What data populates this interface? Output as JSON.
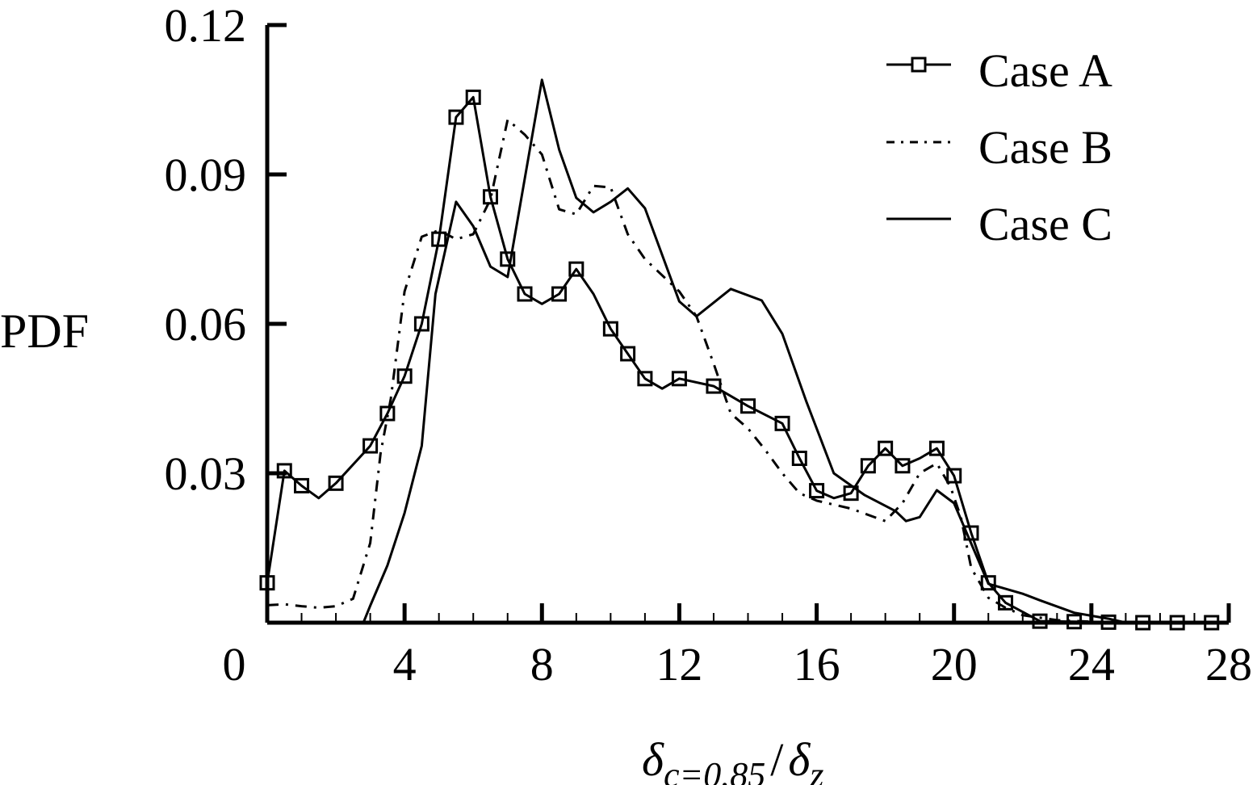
{
  "chart_data": {
    "type": "line",
    "title": "",
    "xlabel": "δ_{c=0.85}/δ_z",
    "ylabel": "PDF",
    "xlim": [
      0,
      28
    ],
    "ylim": [
      0,
      0.12
    ],
    "xticks": [
      0,
      4,
      8,
      12,
      16,
      20,
      24,
      28
    ],
    "xtick_labels": [
      "0",
      "4",
      "8",
      "12",
      "16",
      "20",
      "24",
      "28"
    ],
    "x_minor_step": 1,
    "yticks": [
      0.03,
      0.06,
      0.09,
      0.12
    ],
    "ytick_labels": [
      "0.03",
      "0.06",
      "0.09",
      "0.12"
    ],
    "grid": false,
    "legend_position": "upper right",
    "series": [
      {
        "name": "Case A",
        "style": "solid-square-markers",
        "x": [
          0,
          0.5,
          1.0,
          1.5,
          2.0,
          3.0,
          3.5,
          4.0,
          4.5,
          5.0,
          5.5,
          6.0,
          6.5,
          7.0,
          7.5,
          8.0,
          8.5,
          9.0,
          9.5,
          10.0,
          10.5,
          11.0,
          11.5,
          12.0,
          13.0,
          14.0,
          15.0,
          15.5,
          16.0,
          16.5,
          17.0,
          17.5,
          18.0,
          18.5,
          19.0,
          19.5,
          20.0,
          20.5,
          21.0,
          21.5,
          22.5,
          23.5,
          24.5,
          25.5,
          26.5,
          27.5
        ],
        "y": [
          0.008,
          0.0305,
          0.0275,
          0.025,
          0.028,
          0.0355,
          0.042,
          0.0495,
          0.06,
          0.077,
          0.1015,
          0.1055,
          0.0855,
          0.073,
          0.066,
          0.064,
          0.066,
          0.071,
          0.066,
          0.059,
          0.054,
          0.049,
          0.047,
          0.049,
          0.0475,
          0.0435,
          0.04,
          0.033,
          0.0265,
          0.025,
          0.026,
          0.0315,
          0.035,
          0.0315,
          0.033,
          0.035,
          0.0295,
          0.018,
          0.008,
          0.004,
          0.0003,
          0.0002,
          0.0001,
          0.0,
          0.0,
          0.0
        ],
        "marker_x": [
          0,
          0.5,
          1.0,
          2.0,
          3.0,
          3.5,
          4.0,
          4.5,
          5.0,
          5.5,
          6.0,
          6.5,
          7.0,
          7.5,
          8.5,
          9.0,
          10.0,
          10.5,
          11.0,
          12.0,
          13.0,
          14.0,
          15.0,
          15.5,
          16.0,
          17.0,
          17.5,
          18.0,
          18.5,
          19.5,
          20.0,
          20.5,
          21.0,
          21.5,
          22.5,
          23.5,
          24.5,
          25.5,
          26.5,
          27.5
        ]
      },
      {
        "name": "Case B",
        "style": "dash-dot",
        "x": [
          0,
          0.5,
          1.0,
          1.5,
          2.0,
          2.5,
          3.0,
          3.3,
          3.6,
          4.0,
          4.5,
          5.0,
          5.5,
          6.0,
          6.5,
          7.0,
          7.5,
          8.0,
          8.5,
          9.0,
          9.5,
          10.0,
          10.5,
          11.0,
          12.0,
          12.5,
          13.0,
          13.5,
          14.0,
          14.5,
          15.0,
          15.5,
          16.0,
          17.0,
          18.0,
          18.5,
          19.0,
          19.5,
          19.9,
          20.2,
          20.5,
          21.0,
          21.5,
          22.0,
          23.0,
          24.0,
          25.0
        ],
        "y": [
          0.0035,
          0.0037,
          0.0033,
          0.003,
          0.0033,
          0.0048,
          0.016,
          0.034,
          0.045,
          0.0665,
          0.0775,
          0.0788,
          0.077,
          0.078,
          0.085,
          0.101,
          0.098,
          0.094,
          0.083,
          0.082,
          0.0877,
          0.0874,
          0.078,
          0.073,
          0.0665,
          0.0615,
          0.052,
          0.042,
          0.039,
          0.0347,
          0.03,
          0.026,
          0.0245,
          0.0229,
          0.0204,
          0.024,
          0.03,
          0.032,
          0.0272,
          0.0212,
          0.011,
          0.005,
          0.003,
          0.0015,
          0.0005,
          0.0002,
          0.0
        ]
      },
      {
        "name": "Case C",
        "style": "solid",
        "x": [
          0,
          2.8,
          3.0,
          3.5,
          4.0,
          4.5,
          4.9,
          5.5,
          6.0,
          6.5,
          7.0,
          8.0,
          8.5,
          9.0,
          9.5,
          10.0,
          10.5,
          11.0,
          12.0,
          12.5,
          13.5,
          14.4,
          15.0,
          15.7,
          16.5,
          17.4,
          18.3,
          18.6,
          19.0,
          19.5,
          20.0,
          20.5,
          21.0,
          22.0,
          22.5,
          23.5,
          24.5,
          25.0
        ],
        "y": [
          0.0,
          0.0,
          0.0034,
          0.0115,
          0.022,
          0.0355,
          0.066,
          0.0845,
          0.0796,
          0.0715,
          0.0694,
          0.109,
          0.095,
          0.0853,
          0.0824,
          0.0845,
          0.0872,
          0.0832,
          0.0645,
          0.0615,
          0.067,
          0.0647,
          0.058,
          0.0444,
          0.03,
          0.0256,
          0.0224,
          0.0204,
          0.0212,
          0.0266,
          0.024,
          0.0159,
          0.0078,
          0.0058,
          0.0045,
          0.002,
          0.0008,
          0.0
        ]
      }
    ]
  },
  "legend": {
    "items": [
      {
        "label": "Case A",
        "style": "solid-square-markers"
      },
      {
        "label": "Case B",
        "style": "dash-dot"
      },
      {
        "label": "Case C",
        "style": "solid"
      }
    ]
  },
  "axes": {
    "ylabel": "PDF",
    "xlabel_main": "δ",
    "xlabel_sub": "c=0.85",
    "xlabel_slash": "/",
    "xlabel_main2": "δ",
    "xlabel_sub2": "z"
  }
}
